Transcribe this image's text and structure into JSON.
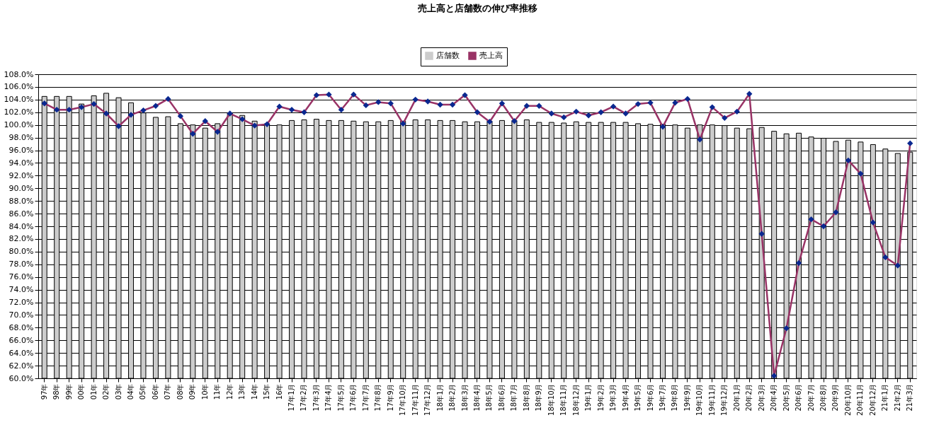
{
  "chart_data": {
    "type": "bar",
    "title": "売上高と店舗数の伸び率推移",
    "categories": [
      "97年",
      "98年",
      "99年",
      "00年",
      "01年",
      "02年",
      "03年",
      "04年",
      "05年",
      "06年",
      "07年",
      "08年",
      "09年",
      "10年",
      "11年",
      "12年",
      "13年",
      "14年",
      "15年",
      "16年",
      "17年1月",
      "17年2月",
      "17年3月",
      "17年4月",
      "17年5月",
      "17年6月",
      "17年7月",
      "17年8月",
      "17年9月",
      "17年10月",
      "17年11月",
      "17年12月",
      "18年1月",
      "18年2月",
      "18年3月",
      "18年4月",
      "18年5月",
      "18年6月",
      "18年7月",
      "18年8月",
      "18年9月",
      "18年10月",
      "18年11月",
      "18年12月",
      "19年1月",
      "19年2月",
      "19年3月",
      "19年4月",
      "19年5月",
      "19年6月",
      "19年7月",
      "19年8月",
      "19年9月",
      "19年10月",
      "19年11月",
      "19年12月",
      "20年1月",
      "20年2月",
      "20年3月",
      "20年4月",
      "20年5月",
      "20年6月",
      "20年7月",
      "20年8月",
      "20年9月",
      "20年10月",
      "20年11月",
      "20年12月",
      "21年1月",
      "21年2月",
      "21年3月"
    ],
    "series": [
      {
        "name": "店舗数",
        "color": "#cccccc",
        "values": [
          104.5,
          104.5,
          104.5,
          103.3,
          104.6,
          105.0,
          104.3,
          103.5,
          101.9,
          101.2,
          101.3,
          100.2,
          100.0,
          99.5,
          100.2,
          101.9,
          101.5,
          100.6,
          100.2,
          100.0,
          100.7,
          100.8,
          100.9,
          100.7,
          100.7,
          100.6,
          100.5,
          100.5,
          100.7,
          100.6,
          100.8,
          100.8,
          100.7,
          100.7,
          100.5,
          100.5,
          100.6,
          100.7,
          100.7,
          100.8,
          100.4,
          100.4,
          100.3,
          100.5,
          100.4,
          100.4,
          100.4,
          100.4,
          100.2,
          100.1,
          100.1,
          100.0,
          99.5,
          100.0,
          100.0,
          99.9,
          99.5,
          99.4,
          99.6,
          99.0,
          98.6,
          98.7,
          98.1,
          97.9,
          97.4,
          97.6,
          97.3,
          96.9,
          96.2,
          95.5,
          95.7
        ]
      },
      {
        "name": "売上高",
        "type": "line",
        "color": "#993366",
        "values": [
          103.4,
          102.4,
          102.4,
          102.8,
          103.3,
          101.8,
          99.8,
          101.6,
          102.3,
          103.0,
          104.1,
          101.4,
          98.6,
          100.6,
          98.9,
          101.8,
          100.9,
          99.9,
          100.1,
          102.9,
          102.4,
          102.0,
          104.7,
          104.8,
          102.4,
          104.8,
          103.1,
          103.6,
          103.4,
          100.2,
          104.0,
          103.7,
          103.2,
          103.2,
          104.7,
          102.0,
          100.5,
          103.4,
          100.6,
          103.0,
          103.0,
          101.8,
          101.2,
          102.1,
          101.5,
          102.0,
          102.9,
          101.8,
          103.3,
          103.5,
          99.7,
          103.5,
          104.1,
          97.7,
          102.8,
          101.1,
          102.1,
          104.9,
          82.8,
          60.4,
          67.9,
          78.2,
          85.1,
          84.0,
          86.2,
          94.4,
          92.3,
          84.6,
          79.1,
          77.8,
          97.1
        ]
      }
    ],
    "ylim": [
      60,
      108
    ],
    "yticks": [
      {
        "value": 60,
        "label": "60.0%"
      },
      {
        "value": 62,
        "label": "62.0%"
      },
      {
        "value": 64,
        "label": "64.0%"
      },
      {
        "value": 66,
        "label": "66.0%"
      },
      {
        "value": 68,
        "label": "68.0%"
      },
      {
        "value": 70,
        "label": "70.0%"
      },
      {
        "value": 72,
        "label": "72.0%"
      },
      {
        "value": 74,
        "label": "74.0%"
      },
      {
        "value": 76,
        "label": "76.0%"
      },
      {
        "value": 78,
        "label": "78.0%"
      },
      {
        "value": 80,
        "label": "80.0%"
      },
      {
        "value": 82,
        "label": "82.0%"
      },
      {
        "value": 84,
        "label": "84.0%"
      },
      {
        "value": 86,
        "label": "86.0%"
      },
      {
        "value": 88,
        "label": "88.0%"
      },
      {
        "value": 90,
        "label": "90.0%"
      },
      {
        "value": 92,
        "label": "92.0%"
      },
      {
        "value": 94,
        "label": "94.0%"
      },
      {
        "value": 96,
        "label": "96.0%"
      },
      {
        "value": 98,
        "label": "98.0%"
      },
      {
        "value": 100,
        "label": "100.0%"
      },
      {
        "value": 102,
        "label": "102.0%"
      },
      {
        "value": 104,
        "label": "104.0%"
      },
      {
        "value": 106,
        "label": "106.0%"
      },
      {
        "value": 108,
        "label": "108.0%"
      }
    ],
    "grid": "y",
    "legend": "top",
    "marker": "diamond"
  }
}
